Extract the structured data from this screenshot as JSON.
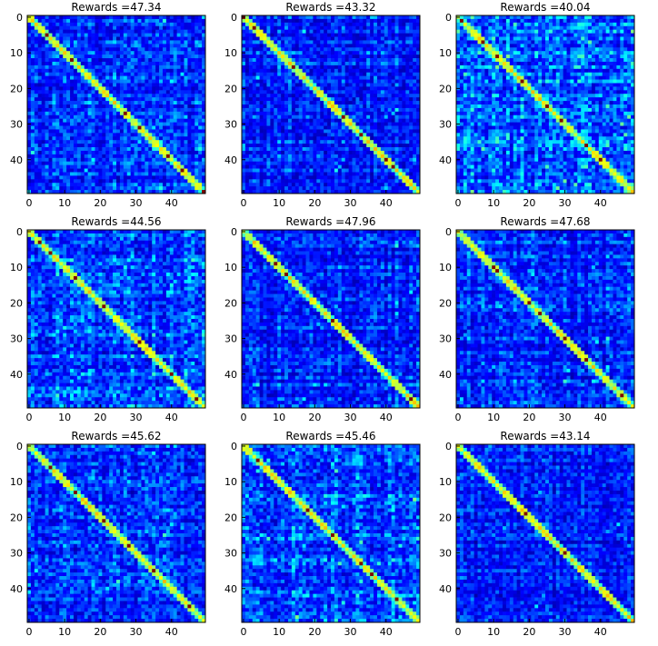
{
  "chart_data": [
    {
      "type": "heatmap",
      "title": "Rewards =47.34",
      "grid": false,
      "colormap": "jet",
      "shape": [
        50,
        50
      ],
      "xlim": [
        0,
        49
      ],
      "ylim": [
        49,
        0
      ],
      "xticks": [
        0,
        10,
        20,
        30,
        40
      ],
      "yticks": [
        0,
        10,
        20,
        30,
        40
      ],
      "diagonal_value": 1.0,
      "off_diagonal_typical": 0.25,
      "hot_diagonal_cells": [
        5,
        12,
        27,
        31,
        39,
        43,
        49
      ]
    },
    {
      "type": "heatmap",
      "title": "Rewards =43.32",
      "grid": false,
      "colormap": "jet",
      "shape": [
        50,
        50
      ],
      "xlim": [
        0,
        49
      ],
      "ylim": [
        49,
        0
      ],
      "xticks": [
        0,
        10,
        20,
        30,
        40
      ],
      "yticks": [
        0,
        10,
        20,
        30,
        40
      ],
      "diagonal_value": 1.0,
      "off_diagonal_typical": 0.25,
      "hot_diagonal_cells": [
        0,
        3,
        14,
        28,
        33,
        40,
        42
      ]
    },
    {
      "type": "heatmap",
      "title": "Rewards =40.04",
      "grid": false,
      "colormap": "jet",
      "shape": [
        50,
        50
      ],
      "xlim": [
        0,
        49
      ],
      "ylim": [
        49,
        0
      ],
      "xticks": [
        0,
        10,
        20,
        30,
        40
      ],
      "yticks": [
        0,
        10,
        20,
        30,
        40
      ],
      "diagonal_value": 1.0,
      "off_diagonal_typical": 0.35,
      "hot_diagonal_cells": [
        1,
        7,
        11,
        18,
        25,
        29,
        36,
        40
      ]
    },
    {
      "type": "heatmap",
      "title": "Rewards =44.56",
      "grid": false,
      "colormap": "jet",
      "shape": [
        50,
        50
      ],
      "xlim": [
        0,
        49
      ],
      "ylim": [
        49,
        0
      ],
      "xticks": [
        0,
        10,
        20,
        30,
        40
      ],
      "yticks": [
        0,
        10,
        20,
        30,
        40
      ],
      "diagonal_value": 1.0,
      "off_diagonal_typical": 0.3,
      "hot_diagonal_cells": [
        3,
        6,
        13,
        21,
        31,
        40,
        47
      ]
    },
    {
      "type": "heatmap",
      "title": "Rewards =47.96",
      "grid": false,
      "colormap": "jet",
      "shape": [
        50,
        50
      ],
      "xlim": [
        0,
        49
      ],
      "ylim": [
        49,
        0
      ],
      "xticks": [
        0,
        10,
        20,
        30,
        40
      ],
      "yticks": [
        0,
        10,
        20,
        30,
        40
      ],
      "diagonal_value": 1.0,
      "off_diagonal_typical": 0.25,
      "hot_diagonal_cells": [
        9,
        12,
        25,
        47
      ]
    },
    {
      "type": "heatmap",
      "title": "Rewards =47.68",
      "grid": false,
      "colormap": "jet",
      "shape": [
        50,
        50
      ],
      "xlim": [
        0,
        49
      ],
      "ylim": [
        49,
        0
      ],
      "xticks": [
        0,
        10,
        20,
        30,
        40
      ],
      "yticks": [
        0,
        10,
        20,
        30,
        40
      ],
      "diagonal_value": 1.0,
      "off_diagonal_typical": 0.25,
      "hot_diagonal_cells": [
        10,
        11,
        20,
        23,
        30,
        36,
        46
      ]
    },
    {
      "type": "heatmap",
      "title": "Rewards =45.62",
      "grid": false,
      "colormap": "jet",
      "shape": [
        50,
        50
      ],
      "xlim": [
        0,
        49
      ],
      "ylim": [
        49,
        0
      ],
      "xticks": [
        0,
        10,
        20,
        30,
        40
      ],
      "yticks": [
        0,
        10,
        20,
        30,
        40
      ],
      "diagonal_value": 1.0,
      "off_diagonal_typical": 0.25,
      "hot_diagonal_cells": [
        6,
        13,
        21,
        28,
        35,
        45
      ]
    },
    {
      "type": "heatmap",
      "title": "Rewards =45.46",
      "grid": false,
      "colormap": "jet",
      "shape": [
        50,
        50
      ],
      "xlim": [
        0,
        49
      ],
      "ylim": [
        49,
        0
      ],
      "xticks": [
        0,
        10,
        20,
        30,
        40
      ],
      "yticks": [
        0,
        10,
        20,
        30,
        40
      ],
      "diagonal_value": 1.0,
      "off_diagonal_typical": 0.3,
      "hot_diagonal_cells": [
        4,
        18,
        25,
        33,
        36,
        43
      ]
    },
    {
      "type": "heatmap",
      "title": "Rewards =43.14",
      "grid": false,
      "colormap": "jet",
      "shape": [
        50,
        50
      ],
      "xlim": [
        0,
        49
      ],
      "ylim": [
        49,
        0
      ],
      "xticks": [
        0,
        10,
        20,
        30,
        40
      ],
      "yticks": [
        0,
        10,
        20,
        30,
        40
      ],
      "diagonal_value": 1.0,
      "off_diagonal_typical": 0.22,
      "hot_diagonal_cells": [
        19,
        30
      ]
    }
  ]
}
